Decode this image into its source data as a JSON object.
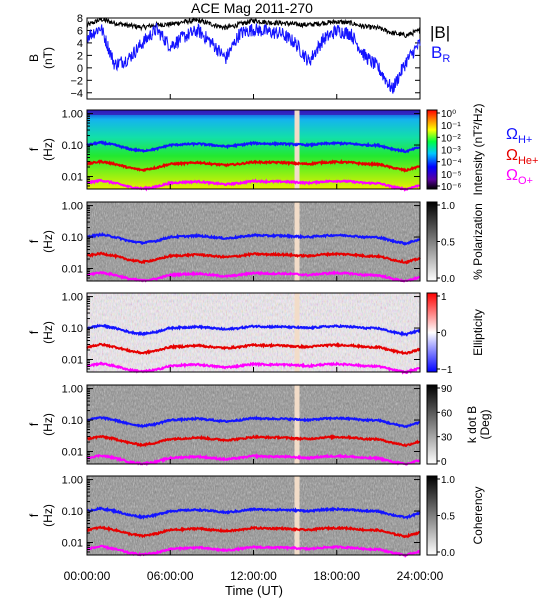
{
  "title": "ACE Mag 2011-270",
  "xaxis": {
    "label": "Time (UT)",
    "ticks": [
      "00:00:00",
      "06:00:00",
      "12:00:00",
      "18:00:00",
      "24:00:00"
    ],
    "range_hours": [
      0,
      24
    ]
  },
  "freq_ticks": [
    "1.00",
    "0.10",
    "0.01"
  ],
  "freq_axis_label_top": "f",
  "freq_axis_label_bottom": "(Hz)",
  "legend_B": {
    "total": "|B|",
    "radial": "B",
    "radial_sub": "R"
  },
  "gyro_labels": [
    {
      "main": "Ω",
      "sub": "H+",
      "color": "#1414ff"
    },
    {
      "main": "Ω",
      "sub": "He+",
      "color": "#e60000"
    },
    {
      "main": "Ω",
      "sub": "O+",
      "color": "#ff00ff"
    }
  ],
  "colorbars": [
    {
      "label": "Intensity (nT²/Hz)",
      "ticks": [
        "10⁰",
        "10⁻²",
        "10⁻⁴",
        "10⁻⁶"
      ],
      "ticks_minor": [
        "10⁻¹",
        "10⁻³",
        "10⁻⁵"
      ]
    },
    {
      "label": "% Polarization",
      "ticks": [
        "1.0",
        "0.5",
        "0.0"
      ]
    },
    {
      "label": "Ellipticity",
      "ticks": [
        "1",
        "0",
        "−1"
      ]
    },
    {
      "label": "k dot B (Deg)",
      "label_top": "k dot B",
      "label_bottom": "(Deg)",
      "ticks": [
        "90",
        "60",
        "30",
        "0"
      ]
    },
    {
      "label": "Coherency",
      "ticks": [
        "1.0",
        "0.5",
        "0.0"
      ]
    }
  ],
  "chart_data": [
    {
      "type": "line",
      "ylabel": "B (nT)",
      "ylabel_top": "B",
      "ylabel_bottom": "(nT)",
      "ylim": [
        -5,
        8
      ],
      "yticks": [
        "8",
        "6",
        "4",
        "2",
        "0",
        "−2",
        "−4"
      ],
      "ytick_values": [
        8,
        6,
        4,
        2,
        0,
        -2,
        -4
      ],
      "x_hours": [
        0,
        1,
        2,
        3,
        4,
        5,
        6,
        7,
        8,
        9,
        10,
        11,
        12,
        13,
        14,
        15,
        16,
        17,
        18,
        19,
        20,
        21,
        22,
        23,
        24
      ],
      "series": [
        {
          "name": "|B|",
          "color": "#000000",
          "values": [
            6.8,
            7.8,
            7.2,
            6.8,
            6.5,
            6.9,
            7.0,
            7.4,
            7.6,
            7.0,
            6.4,
            7.0,
            7.6,
            7.3,
            7.2,
            7.0,
            6.9,
            7.2,
            7.4,
            7.2,
            6.6,
            6.4,
            5.6,
            5.2,
            6.0
          ]
        },
        {
          "name": "B_R",
          "color": "#1414ff",
          "values": [
            5.0,
            6.5,
            0.5,
            1.5,
            4.0,
            6.2,
            3.5,
            5.0,
            6.0,
            4.0,
            1.5,
            5.5,
            6.2,
            5.8,
            5.5,
            4.0,
            1.0,
            4.5,
            6.0,
            5.5,
            2.0,
            0.0,
            -3.5,
            1.0,
            4.0
          ]
        }
      ]
    },
    {
      "type": "heatmap",
      "name": "Intensity",
      "ylabel": "f (Hz)",
      "ylim": [
        0.004,
        1.3
      ],
      "yscale": "log",
      "colormap": "rainbow",
      "zrange_log10": [
        -6,
        0
      ],
      "gap_hour": 15.1
    },
    {
      "type": "heatmap",
      "name": "% Polarization",
      "ylabel": "f (Hz)",
      "yscale": "log",
      "colormap": "gray",
      "zrange": [
        0,
        1
      ],
      "gap_hour": 15.1
    },
    {
      "type": "heatmap",
      "name": "Ellipticity",
      "ylabel": "f (Hz)",
      "yscale": "log",
      "colormap": "blue-white-red",
      "zrange": [
        -1,
        1
      ],
      "gap_hour": 15.1
    },
    {
      "type": "heatmap",
      "name": "k dot B",
      "ylabel": "f (Hz)",
      "yscale": "log",
      "colormap": "gray",
      "zrange": [
        0,
        90
      ],
      "gap_hour": 15.1
    },
    {
      "type": "heatmap",
      "name": "Coherency",
      "ylabel": "f (Hz)",
      "yscale": "log",
      "colormap": "gray",
      "zrange": [
        0,
        1
      ],
      "gap_hour": 15.1
    }
  ],
  "gyrofrequency_curves": {
    "x_hours": [
      0,
      1,
      2,
      3,
      4,
      5,
      6,
      7,
      8,
      9,
      10,
      11,
      12,
      13,
      14,
      15,
      16,
      17,
      18,
      19,
      20,
      21,
      22,
      23,
      24
    ],
    "H+": [
      0.1,
      0.12,
      0.1,
      0.075,
      0.065,
      0.075,
      0.1,
      0.105,
      0.11,
      0.1,
      0.09,
      0.1,
      0.115,
      0.11,
      0.11,
      0.105,
      0.1,
      0.11,
      0.115,
      0.11,
      0.1,
      0.098,
      0.075,
      0.062,
      0.085
    ],
    "He+": [
      0.025,
      0.03,
      0.025,
      0.019,
      0.016,
      0.019,
      0.025,
      0.026,
      0.028,
      0.025,
      0.023,
      0.025,
      0.029,
      0.028,
      0.028,
      0.026,
      0.025,
      0.028,
      0.029,
      0.028,
      0.025,
      0.0245,
      0.019,
      0.0155,
      0.021
    ],
    "O+": [
      0.0062,
      0.0075,
      0.0062,
      0.0047,
      0.0041,
      0.0047,
      0.0062,
      0.0066,
      0.0069,
      0.0062,
      0.0056,
      0.0062,
      0.0072,
      0.0069,
      0.0069,
      0.0066,
      0.0062,
      0.0069,
      0.0072,
      0.0069,
      0.0062,
      0.0061,
      0.0047,
      0.0039,
      0.0053
    ]
  }
}
